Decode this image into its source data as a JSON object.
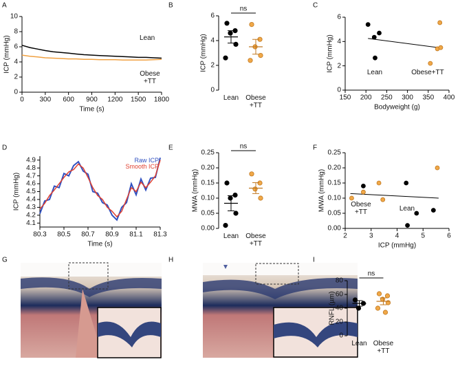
{
  "panel_labels": [
    "A",
    "B",
    "C",
    "D",
    "E",
    "F",
    "G",
    "H",
    "I"
  ],
  "chart_data": [
    {
      "type": "line",
      "ylabel": "ICP (mmHg)",
      "xlabel": "Time (s)",
      "x": [
        0,
        100,
        200,
        300,
        400,
        500,
        600,
        700,
        800,
        900,
        1000,
        1100,
        1200,
        1300,
        1400,
        1500,
        1600,
        1700,
        1800
      ],
      "series": [
        {
          "name": "Lean",
          "color": "#000000",
          "values": [
            6.2,
            5.9,
            5.7,
            5.5,
            5.35,
            5.25,
            5.15,
            5.05,
            4.95,
            4.9,
            4.85,
            4.8,
            4.75,
            4.7,
            4.65,
            4.6,
            4.6,
            4.55,
            4.5
          ]
        },
        {
          "name": "Obese +TT",
          "color": "#f0a040",
          "values": [
            4.9,
            4.75,
            4.65,
            4.55,
            4.5,
            4.45,
            4.4,
            4.4,
            4.35,
            4.35,
            4.3,
            4.3,
            4.3,
            4.25,
            4.25,
            4.25,
            4.25,
            4.3,
            4.35
          ]
        }
      ],
      "xlim": [
        0,
        1800
      ],
      "xticks": [
        0,
        300,
        600,
        900,
        1200,
        1500,
        1800
      ],
      "ylim": [
        0,
        10
      ],
      "yticks": [
        0,
        2,
        4,
        6,
        8,
        10
      ]
    },
    {
      "type": "dot",
      "ylabel": "ICP (mmHg)",
      "annotation": "ns",
      "categories": [
        "Lean",
        "Obese +TT"
      ],
      "colors": [
        "#000000",
        "#f0a848"
      ],
      "values": [
        [
          5.4,
          4.8,
          4.6,
          3.7,
          2.6
        ],
        [
          5.3,
          4.1,
          3.5,
          2.8,
          2.4
        ]
      ],
      "means": [
        4.3,
        3.5
      ],
      "sems": [
        0.5,
        0.6
      ],
      "ylim": [
        0,
        6
      ],
      "yticks": [
        0,
        2,
        4,
        6
      ]
    },
    {
      "type": "scatter",
      "ylabel": "ICP (mmHg)",
      "xlabel": "Bodyweight  (g)",
      "series": [
        {
          "name": "Lean",
          "color": "#000000",
          "x": [
            205,
            220,
            232,
            222
          ],
          "values": [
            5.4,
            4.35,
            4.7,
            2.65
          ]
        },
        {
          "name": "Obese+TT",
          "color": "#f0a848",
          "x": [
            355,
            372,
            380,
            378
          ],
          "values": [
            2.2,
            3.4,
            3.5,
            5.55
          ]
        }
      ],
      "fit": {
        "x": [
          205,
          385
        ],
        "values": [
          4.25,
          3.45
        ]
      },
      "xlim": [
        150,
        400
      ],
      "xticks": [
        150,
        200,
        250,
        300,
        350,
        400
      ],
      "ylim": [
        0,
        6
      ],
      "yticks": [
        0,
        2,
        4,
        6
      ]
    },
    {
      "type": "line",
      "ylabel": "ICP (mmHg)",
      "xlabel": "Time (s)",
      "legend": "upper right",
      "x": [
        80.3,
        80.34,
        80.38,
        80.42,
        80.46,
        80.5,
        80.54,
        80.58,
        80.62,
        80.66,
        80.7,
        80.74,
        80.78,
        80.82,
        80.86,
        80.9,
        80.94,
        80.98,
        81.02,
        81.06,
        81.1,
        81.14,
        81.18,
        81.22,
        81.26,
        81.3
      ],
      "series": [
        {
          "name": "Raw ICP",
          "color": "#3050c0",
          "values": [
            4.22,
            4.38,
            4.4,
            4.57,
            4.55,
            4.73,
            4.7,
            4.83,
            4.88,
            4.76,
            4.72,
            4.5,
            4.48,
            4.36,
            4.33,
            4.2,
            4.14,
            4.3,
            4.36,
            4.6,
            4.46,
            4.66,
            4.52,
            4.67,
            4.68,
            4.93
          ]
        },
        {
          "name": "Smooth ICP",
          "color": "#e04030",
          "values": [
            4.28,
            4.35,
            4.45,
            4.52,
            4.6,
            4.68,
            4.75,
            4.78,
            4.85,
            4.8,
            4.68,
            4.55,
            4.45,
            4.4,
            4.3,
            4.25,
            4.18,
            4.25,
            4.4,
            4.55,
            4.5,
            4.62,
            4.55,
            4.62,
            4.7,
            4.9
          ]
        }
      ],
      "xlim": [
        80.3,
        81.3
      ],
      "xticks": [
        80.3,
        80.5,
        80.7,
        80.9,
        81.1,
        81.3
      ],
      "ylim": [
        4.05,
        4.95
      ],
      "yticks": [
        4.1,
        4.2,
        4.3,
        4.4,
        4.5,
        4.6,
        4.7,
        4.8,
        4.9
      ]
    },
    {
      "type": "dot",
      "ylabel": "MWA (mmHg)",
      "annotation": "ns",
      "categories": [
        "Lean",
        "Obese +TT"
      ],
      "colors": [
        "#000000",
        "#f0a848"
      ],
      "values": [
        [
          0.15,
          0.11,
          0.1,
          0.05,
          0.01
        ],
        [
          0.18,
          0.15,
          0.13,
          0.1
        ]
      ],
      "means": [
        0.083,
        0.133
      ],
      "sems": [
        0.025,
        0.018
      ],
      "ylim": [
        0,
        0.25
      ],
      "yticks": [
        {
          "value": 0,
          "label": "0.00"
        },
        {
          "value": 0.05,
          "label": "0.05"
        },
        {
          "value": 0.1,
          "label": "0.10"
        },
        {
          "value": 0.15,
          "label": "0.15"
        },
        {
          "value": 0.2,
          "label": "0.20"
        },
        {
          "value": 0.25,
          "label": "0.25"
        }
      ]
    },
    {
      "type": "scatter",
      "ylabel": "MWA (mmHg)",
      "xlabel": "ICP (mmHg)",
      "series": [
        {
          "name": "Lean",
          "color": "#000000",
          "x": [
            2.7,
            4.35,
            4.4,
            4.75,
            5.4
          ],
          "values": [
            0.14,
            0.15,
            0.01,
            0.05,
            0.06
          ]
        },
        {
          "name": "Obese +TT",
          "color": "#f0a848",
          "x": [
            2.25,
            2.7,
            3.3,
            3.45,
            5.55
          ],
          "values": [
            0.1,
            0.12,
            0.15,
            0.095,
            0.2
          ]
        }
      ],
      "fit": {
        "x": [
          2.2,
          5.6
        ],
        "values": [
          0.115,
          0.1
        ]
      },
      "xlim": [
        2,
        6
      ],
      "xticks": [
        2,
        3,
        4,
        5,
        6
      ],
      "ylim": [
        0,
        0.25
      ],
      "yticks": [
        {
          "value": 0,
          "label": "0.00"
        },
        {
          "value": 0.05,
          "label": "0.05"
        },
        {
          "value": 0.1,
          "label": "0.10"
        },
        {
          "value": 0.15,
          "label": "0.15"
        },
        {
          "value": 0.2,
          "label": "0.20"
        },
        {
          "value": 0.25,
          "label": "0.25"
        }
      ]
    },
    {
      "type": "dot",
      "ylabel": "RNFL (µm)",
      "annotation": "ns",
      "categories": [
        "Lean",
        "Obese +TT"
      ],
      "colors": [
        "#000000",
        "#f0a848"
      ],
      "values": [
        [
          52,
          47,
          40
        ],
        [
          61,
          58,
          53,
          48,
          40,
          34
        ]
      ],
      "means": [
        47,
        50
      ],
      "sems": [
        4,
        5
      ],
      "ylim": [
        0,
        80
      ],
      "yticks": [
        0,
        20,
        40,
        60,
        80
      ]
    }
  ]
}
